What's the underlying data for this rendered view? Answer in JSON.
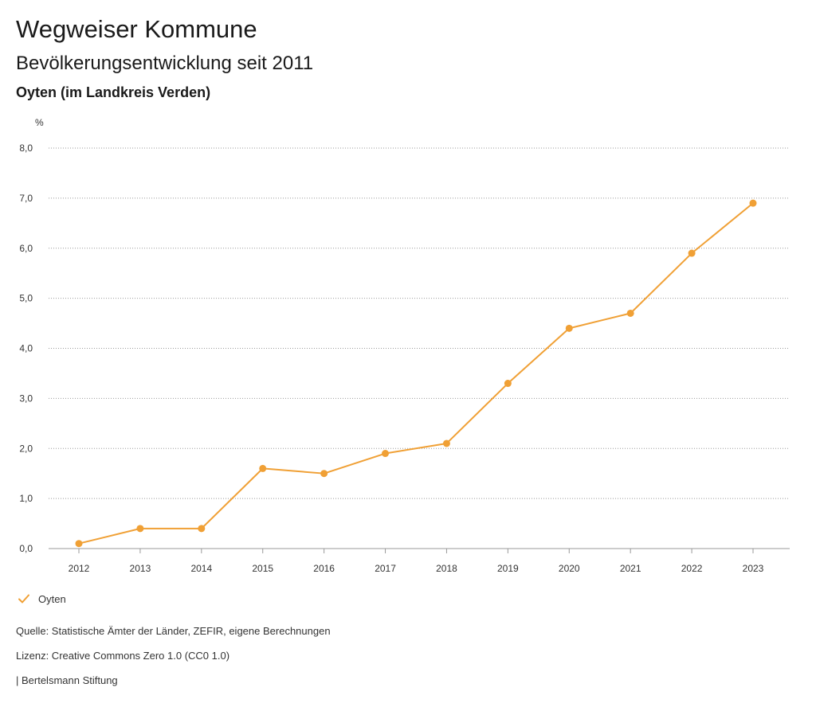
{
  "header": {
    "title": "Wegweiser Kommune",
    "subtitle": "Bevölkerungsentwicklung seit 2011",
    "region": "Oyten (im Landkreis Verden)"
  },
  "chart_data": {
    "type": "line",
    "unit_label": "%",
    "categories": [
      "2012",
      "2013",
      "2014",
      "2015",
      "2016",
      "2017",
      "2018",
      "2019",
      "2020",
      "2021",
      "2022",
      "2023"
    ],
    "series": [
      {
        "name": "Oyten",
        "color": "#f0a035",
        "values": [
          0.1,
          0.4,
          0.4,
          1.6,
          1.5,
          1.9,
          2.1,
          3.3,
          4.4,
          4.7,
          5.9,
          6.9
        ]
      }
    ],
    "y_ticks": [
      "0,0",
      "1,0",
      "2,0",
      "3,0",
      "4,0",
      "5,0",
      "6,0",
      "7,0",
      "8,0"
    ],
    "ylim": [
      0,
      8
    ],
    "grid": true,
    "legend_position": "bottom-left"
  },
  "legend": {
    "label": "Oyten",
    "icon": "check-icon"
  },
  "footer": {
    "source": "Quelle: Statistische Ämter der Länder, ZEFIR, eigene Berechnungen",
    "license": "Lizenz: Creative Commons Zero 1.0 (CC0 1.0)",
    "publisher": "| Bertelsmann Stiftung"
  }
}
